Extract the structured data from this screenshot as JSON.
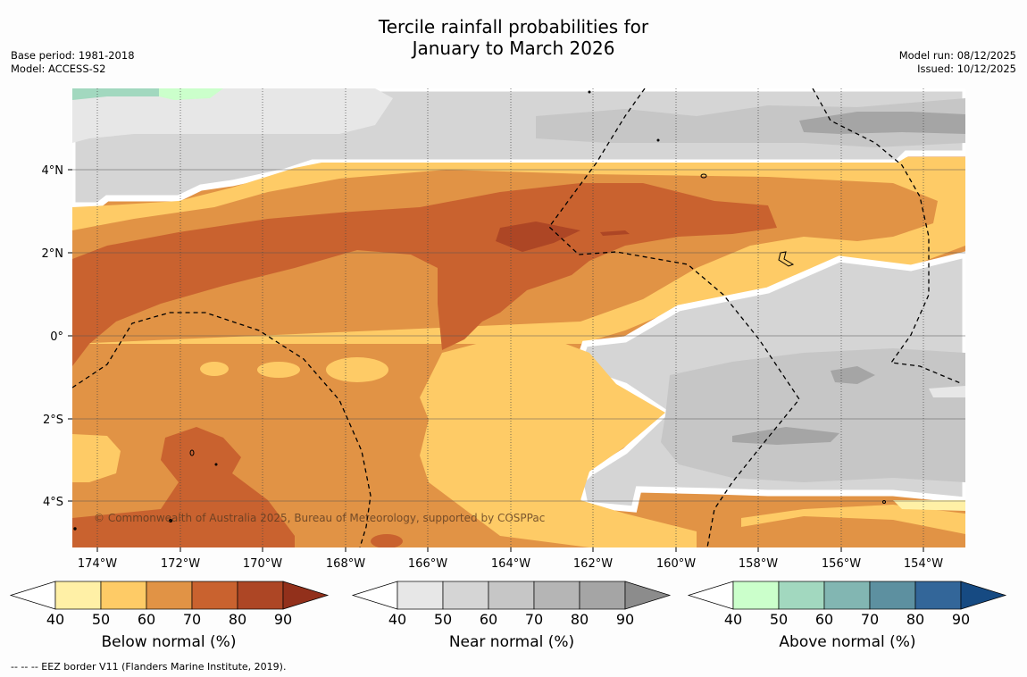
{
  "title_line1": "Tercile rainfall probabilities for",
  "title_line2": "January to March 2026",
  "base_period": "Base period: 1981-2018",
  "model": "Model: ACCESS-S2",
  "model_run": "Model run: 08/12/2025",
  "issued": "Issued: 10/12/2025",
  "copyright": "© Commonwealth of Australia 2025, Bureau of Meteorology, supported by COSPPac",
  "lon_ticks": [
    "174°W",
    "172°W",
    "170°W",
    "168°W",
    "166°W",
    "164°W",
    "162°W",
    "160°W",
    "158°W",
    "156°W",
    "154°W"
  ],
  "lat_ticks": [
    "4°N",
    "2°N",
    "0°",
    "2°S",
    "4°S"
  ],
  "colorbars": [
    {
      "label": "Below normal (%)",
      "ticks": [
        "40",
        "50",
        "60",
        "70",
        "80",
        "90"
      ],
      "colors": [
        "#fff0a6",
        "#fecb66",
        "#e19345",
        "#c9622f",
        "#ad4625",
        "#92301b"
      ]
    },
    {
      "label": "Near normal (%)",
      "ticks": [
        "40",
        "50",
        "60",
        "70",
        "80",
        "90"
      ],
      "colors": [
        "#e7e7e7",
        "#d5d5d5",
        "#c6c6c6",
        "#b5b5b5",
        "#a5a5a5",
        "#8c8c8c"
      ]
    },
    {
      "label": "Above normal (%)",
      "ticks": [
        "40",
        "50",
        "60",
        "70",
        "80",
        "90"
      ],
      "colors": [
        "#cbffcb",
        "#a2d8bf",
        "#82b6b2",
        "#5d90a0",
        "#336699",
        "#164a82"
      ]
    }
  ],
  "footnote": "--  --  -- EEZ border V11 (Flanders Marine Institute, 2019)."
}
